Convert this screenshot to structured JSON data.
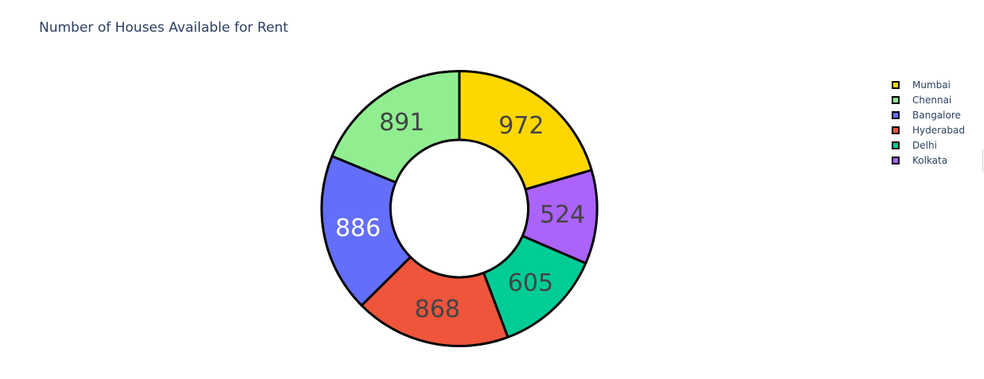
{
  "chart_data": {
    "type": "pie",
    "title": "Number of Houses Available for Rent",
    "hole": 0.5,
    "direction": "clockwise",
    "start_angle": 90,
    "slice_border_color": "#000000",
    "legend_position": "top-right",
    "slices": [
      {
        "label": "Mumbai",
        "value": 972,
        "color": "#FFD700",
        "text_color": "#444444"
      },
      {
        "label": "Kolkata",
        "value": 524,
        "color": "#AB63FA",
        "text_color": "#444444"
      },
      {
        "label": "Delhi",
        "value": 605,
        "color": "#00CC96",
        "text_color": "#444444"
      },
      {
        "label": "Hyderabad",
        "value": 868,
        "color": "#EF553B",
        "text_color": "#444444"
      },
      {
        "label": "Bangalore",
        "value": 886,
        "color": "#636EFA",
        "text_color": "#ffffff"
      },
      {
        "label": "Chennai",
        "value": 891,
        "color": "#90EE90",
        "text_color": "#444444"
      }
    ],
    "legend_order": [
      "Mumbai",
      "Chennai",
      "Bangalore",
      "Hyderabad",
      "Delhi",
      "Kolkata"
    ]
  }
}
